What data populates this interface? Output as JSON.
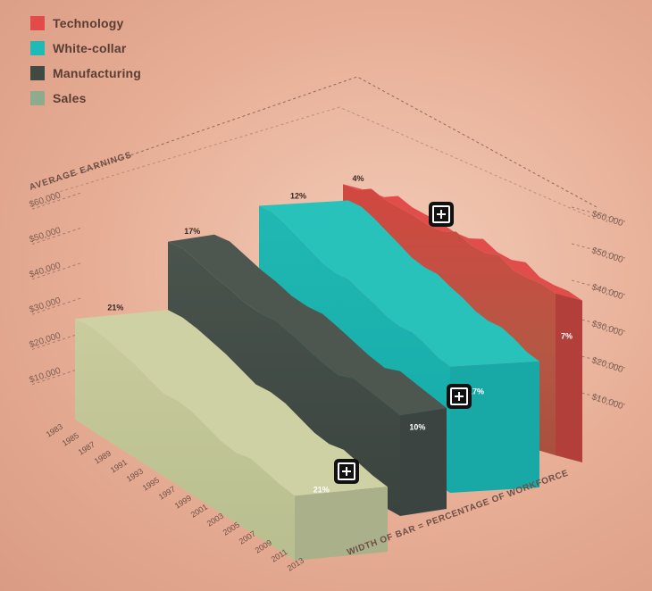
{
  "legend": [
    {
      "label": "Technology",
      "color": "#e34a4a"
    },
    {
      "label": "White-collar",
      "color": "#1fbab5"
    },
    {
      "label": "Manufacturing",
      "color": "#404a43"
    },
    {
      "label": "Sales",
      "color": "#9cb496"
    }
  ],
  "chart_data": {
    "type": "area",
    "ylabel": "AVERAGE EARNINGS",
    "xlabel": "WIDTH OF BAR = PERCENTAGE OF WORKFORCE",
    "y_ticks": [
      "$10,000",
      "$20,000",
      "$30,000",
      "$40,000",
      "$50,000",
      "$60,000"
    ],
    "x_ticks": [
      "1983",
      "1985",
      "1987",
      "1989",
      "1991",
      "1993",
      "1995",
      "1997",
      "1999",
      "2001",
      "2003",
      "2005",
      "2007",
      "2009",
      "2011",
      "2013"
    ],
    "ylim": [
      0,
      65000
    ],
    "series": [
      {
        "name": "Technology",
        "share_start": "4%",
        "share_end": "7%",
        "earnings": [
          58000,
          57500,
          59000,
          57000,
          56000,
          55000,
          53500,
          53000,
          54000,
          51500,
          50500,
          51000,
          48000,
          47000,
          46500,
          45000
        ]
      },
      {
        "name": "White-collar",
        "share_start": "12%",
        "share_end": "17%",
        "earnings": [
          47000,
          47500,
          46500,
          45000,
          43500,
          42000,
          41500,
          41800,
          40500,
          39500,
          38000,
          37500,
          38000,
          37000,
          35500,
          35000
        ]
      },
      {
        "name": "Manufacturing",
        "share_start": "17%",
        "share_end": "10%",
        "earnings": [
          40000,
          40500,
          39000,
          37500,
          36500,
          35000,
          34500,
          34800,
          33500,
          32000,
          30500,
          29500,
          31000,
          30000,
          29000,
          28000
        ]
      },
      {
        "name": "Sales",
        "share_start": "21%",
        "share_end": "21%",
        "earnings": [
          28000,
          28500,
          28000,
          27000,
          26000,
          24500,
          23000,
          23500,
          23000,
          21500,
          20000,
          19500,
          20500,
          19500,
          18500,
          18000
        ]
      }
    ]
  }
}
